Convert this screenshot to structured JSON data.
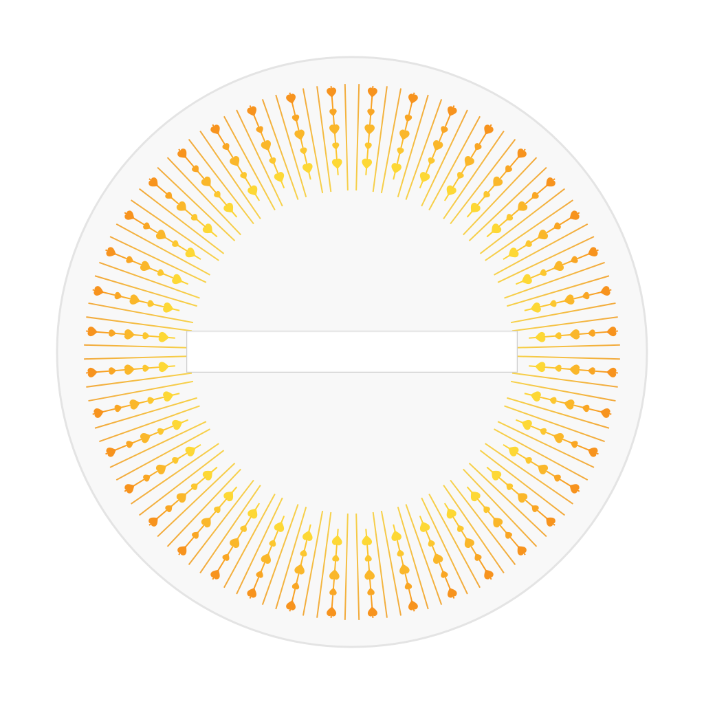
{
  "colors": {
    "background": "#ffffff",
    "disc_fill": "#f8f8f8",
    "disc_border": "#e4e4e4",
    "heart_outer": "#f7931e",
    "heart_inner": "#fdd835",
    "line_outer": "#f2a83a",
    "line_inner": "#f7d24a",
    "field_border": "#cfcfcf"
  },
  "icons": {
    "ray_mark": "heart-icon"
  },
  "field": {
    "value": "",
    "placeholder": ""
  }
}
